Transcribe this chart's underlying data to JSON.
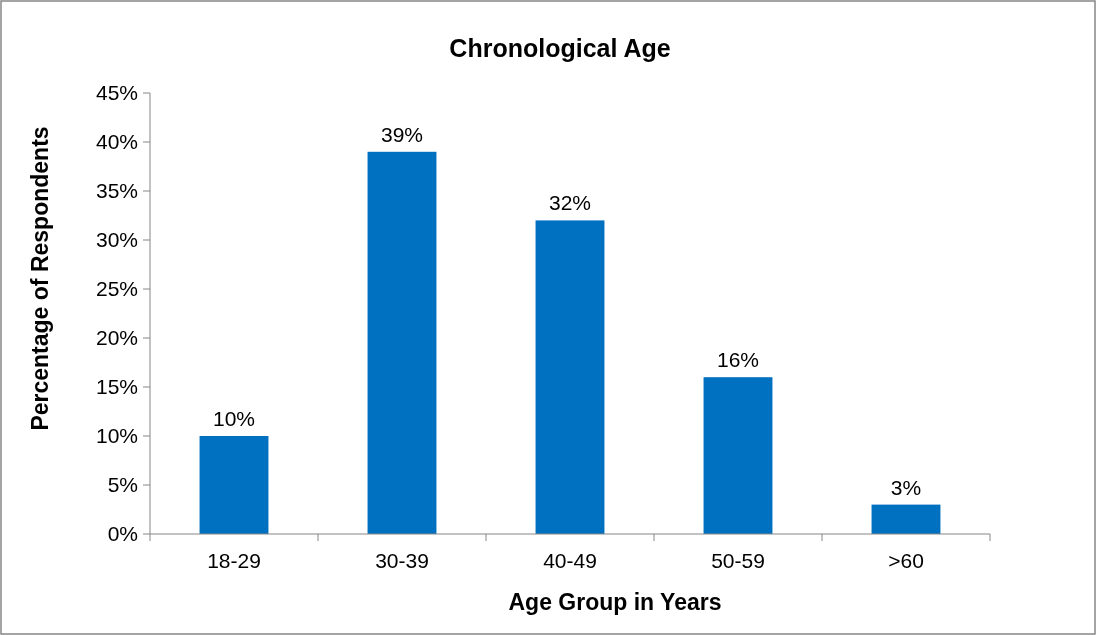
{
  "chart_data": {
    "type": "bar",
    "title": "Chronological Age",
    "xlabel": "Age Group in Years",
    "ylabel": "Percentage of Respondents",
    "categories": [
      "18-29",
      "30-39",
      "40-49",
      "50-59",
      ">60"
    ],
    "values": [
      10,
      39,
      32,
      16,
      3
    ],
    "color": "#0070c0",
    "value_labels": [
      "10%",
      "39%",
      "32%",
      "16%",
      "3%"
    ],
    "ylim": [
      0,
      45
    ],
    "yticks": [
      {
        "value": 0,
        "label": "0%"
      },
      {
        "value": 5,
        "label": "5%"
      },
      {
        "value": 10,
        "label": "10%"
      },
      {
        "value": 15,
        "label": "15%"
      },
      {
        "value": 20,
        "label": "20%"
      },
      {
        "value": 25,
        "label": "25%"
      },
      {
        "value": 30,
        "label": "30%"
      },
      {
        "value": 35,
        "label": "35%"
      },
      {
        "value": 40,
        "label": "40%"
      },
      {
        "value": 45,
        "label": "45%"
      }
    ],
    "grid": false
  }
}
